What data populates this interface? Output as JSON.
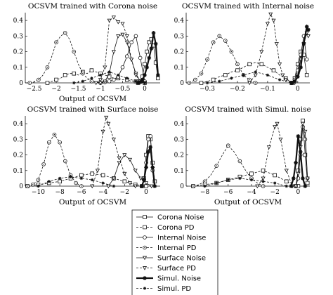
{
  "chart_data": [
    {
      "type": "line",
      "title": "OCSVM trained with Corona noise",
      "xlabel": "Output of OCSVM",
      "ylabel": "",
      "xlim": [
        -2.7,
        0.35
      ],
      "ylim": [
        0,
        0.45
      ],
      "xticks": [
        -2.5,
        -2,
        -1.5,
        -1,
        -0.5,
        0
      ],
      "xtick_labels": [
        "−2.5",
        "−2",
        "−1.5",
        "−1",
        "−0.5",
        "0"
      ],
      "yticks": [
        0,
        0.1,
        0.2,
        0.3,
        0.4
      ],
      "ytick_labels": [
        "0",
        "0.1",
        "0.2",
        "0.3",
        "0.4"
      ],
      "series": [
        {
          "name": "Corona Noise",
          "x": [
            -0.15,
            -0.1,
            -0.05,
            0.0,
            0.05,
            0.1,
            0.15,
            0.2,
            0.25,
            0.3
          ],
          "y": [
            0,
            0.01,
            0.04,
            0.12,
            0.2,
            0.26,
            0.28,
            0.24,
            0.13,
            0.03
          ]
        },
        {
          "name": "Corona PD",
          "x": [
            -2.2,
            -2.1,
            -2.0,
            -1.9,
            -1.8,
            -1.7,
            -1.6,
            -1.5,
            -1.4,
            -1.3,
            -1.2,
            -1.1,
            -1.0,
            -0.9,
            -0.8,
            -0.7,
            -0.6,
            -0.5,
            -0.4,
            -0.3,
            -0.2,
            -0.1,
            0.0
          ],
          "y": [
            0,
            0.01,
            0.02,
            0.03,
            0.05,
            0.06,
            0.06,
            0.05,
            0.07,
            0.06,
            0.08,
            0.07,
            0.06,
            0.05,
            0.04,
            0.03,
            0.03,
            0.02,
            0.02,
            0.01,
            0.01,
            0.005,
            0
          ]
        },
        {
          "name": "Internal Noise",
          "x": [
            -1.0,
            -0.9,
            -0.8,
            -0.7,
            -0.6,
            -0.5,
            -0.4,
            -0.3,
            -0.2,
            -0.1,
            0.0
          ],
          "y": [
            0,
            0.005,
            0.01,
            0.02,
            0.04,
            0.1,
            0.17,
            0.26,
            0.3,
            0.16,
            0.01
          ]
        },
        {
          "name": "Internal PD",
          "x": [
            -2.6,
            -2.5,
            -2.4,
            -2.3,
            -2.2,
            -2.1,
            -2.0,
            -1.9,
            -1.8,
            -1.7,
            -1.6,
            -1.5,
            -1.4,
            -1.3,
            -1.2,
            -1.1,
            -1.0
          ],
          "y": [
            0,
            0.005,
            0.02,
            0.05,
            0.1,
            0.17,
            0.26,
            0.3,
            0.32,
            0.28,
            0.2,
            0.12,
            0.06,
            0.03,
            0.01,
            0.005,
            0
          ]
        },
        {
          "name": "Surface Noise",
          "x": [
            -1.0,
            -0.9,
            -0.8,
            -0.7,
            -0.6,
            -0.5,
            -0.4,
            -0.3,
            -0.2,
            -0.1,
            0.0
          ],
          "y": [
            0,
            0.01,
            0.06,
            0.2,
            0.3,
            0.31,
            0.26,
            0.15,
            0.06,
            0.01,
            0
          ]
        },
        {
          "name": "Surface PD",
          "x": [
            -1.1,
            -1.0,
            -0.9,
            -0.8,
            -0.7,
            -0.6,
            -0.5,
            -0.4,
            -0.3,
            -0.2,
            -0.1,
            0.0
          ],
          "y": [
            0,
            0.02,
            0.1,
            0.4,
            0.42,
            0.39,
            0.38,
            0.3,
            0.15,
            0.05,
            0.01,
            0
          ]
        },
        {
          "name": "Simul. Noise",
          "x": [
            -0.15,
            -0.1,
            -0.05,
            0.0,
            0.05,
            0.1,
            0.15,
            0.2,
            0.25,
            0.3
          ],
          "y": [
            0,
            0.005,
            0.02,
            0.05,
            0.1,
            0.16,
            0.22,
            0.32,
            0.25,
            0.05
          ]
        },
        {
          "name": "Simul. PD",
          "x": [
            -1.6,
            -1.4,
            -1.2,
            -1.0,
            -0.8,
            -0.6,
            -0.4,
            -0.2,
            0.0
          ],
          "y": [
            0,
            0.01,
            0.03,
            0.05,
            0.07,
            0.05,
            0.03,
            0.01,
            0
          ]
        }
      ]
    },
    {
      "type": "line",
      "title": "OCSVM trained with Internal noise",
      "xlabel": "",
      "ylabel": "",
      "xlim": [
        -0.37,
        0.04
      ],
      "ylim": [
        0,
        0.45
      ],
      "xticks": [
        -0.3,
        -0.2,
        -0.1,
        0
      ],
      "xtick_labels": [
        "−0.3",
        "−0.2",
        "−0.1",
        "0"
      ],
      "yticks": [
        0,
        0.1,
        0.2,
        0.3,
        0.4
      ],
      "ytick_labels": [
        "0",
        "0.1",
        "0.2",
        "0.3",
        "0.4"
      ],
      "series": [
        {
          "name": "Corona Noise",
          "x": [
            -0.02,
            -0.01,
            0.0,
            0.01,
            0.02,
            0.03
          ],
          "y": [
            0,
            0.03,
            0.12,
            0.2,
            0.18,
            0.05
          ]
        },
        {
          "name": "Corona PD",
          "x": [
            -0.32,
            -0.3,
            -0.28,
            -0.26,
            -0.24,
            -0.22,
            -0.2,
            -0.18,
            -0.16,
            -0.14,
            -0.12,
            -0.1,
            -0.08,
            -0.06,
            -0.04,
            -0.02
          ],
          "y": [
            0,
            0.01,
            0.02,
            0.04,
            0.05,
            0.07,
            0.08,
            0.1,
            0.12,
            0.13,
            0.12,
            0.1,
            0.08,
            0.05,
            0.03,
            0
          ]
        },
        {
          "name": "Internal Noise",
          "x": [
            -0.02,
            -0.01,
            0.0,
            0.01,
            0.02,
            0.03
          ],
          "y": [
            0,
            0.02,
            0.08,
            0.18,
            0.3,
            0.15
          ]
        },
        {
          "name": "Internal PD",
          "x": [
            -0.36,
            -0.34,
            -0.32,
            -0.3,
            -0.28,
            -0.26,
            -0.24,
            -0.22,
            -0.2,
            -0.18,
            -0.16,
            -0.14
          ],
          "y": [
            0,
            0.02,
            0.06,
            0.15,
            0.26,
            0.3,
            0.27,
            0.2,
            0.12,
            0.05,
            0.02,
            0
          ]
        },
        {
          "name": "Surface Noise",
          "x": [
            -0.01,
            0.0,
            0.01,
            0.02,
            0.03,
            0.035
          ],
          "y": [
            0,
            0.05,
            0.15,
            0.25,
            0.32,
            0.3
          ]
        },
        {
          "name": "Surface PD",
          "x": [
            -0.16,
            -0.14,
            -0.12,
            -0.1,
            -0.09,
            -0.08,
            -0.07,
            -0.06,
            -0.05,
            -0.04,
            -0.02
          ],
          "y": [
            0,
            0.05,
            0.2,
            0.38,
            0.44,
            0.4,
            0.25,
            0.12,
            0.05,
            0.02,
            0
          ]
        },
        {
          "name": "Simul. Noise",
          "x": [
            -0.02,
            -0.01,
            0.0,
            0.01,
            0.02,
            0.03,
            0.035
          ],
          "y": [
            0,
            0.01,
            0.04,
            0.1,
            0.25,
            0.36,
            0.34
          ]
        },
        {
          "name": "Simul. PD",
          "x": [
            -0.3,
            -0.26,
            -0.22,
            -0.18,
            -0.14,
            -0.1,
            -0.06,
            -0.02
          ],
          "y": [
            0,
            0.01,
            0.03,
            0.05,
            0.07,
            0.05,
            0.02,
            0
          ]
        }
      ]
    },
    {
      "type": "line",
      "title": "OCSVM trained with Surface noise",
      "xlabel": "Output of OCSVM",
      "ylabel": "",
      "xlim": [
        -11.2,
        1.3
      ],
      "ylim": [
        0,
        0.45
      ],
      "xticks": [
        -10,
        -8,
        -6,
        -4,
        -2,
        0
      ],
      "xtick_labels": [
        "−10",
        "−8",
        "−6",
        "−4",
        "−2",
        "0"
      ],
      "yticks": [
        0,
        0.1,
        0.2,
        0.3,
        0.4
      ],
      "ytick_labels": [
        "0",
        "0.1",
        "0.2",
        "0.3",
        "0.4"
      ],
      "series": [
        {
          "name": "Corona Noise",
          "x": [
            -0.4,
            -0.2,
            0.0,
            0.2,
            0.4,
            0.6,
            0.8
          ],
          "y": [
            0,
            0.05,
            0.2,
            0.32,
            0.3,
            0.15,
            0.03
          ]
        },
        {
          "name": "Corona PD",
          "x": [
            -11,
            -10,
            -9,
            -8,
            -7,
            -6,
            -5,
            -4,
            -3,
            -2,
            -1,
            0
          ],
          "y": [
            0,
            0.01,
            0.02,
            0.03,
            0.05,
            0.07,
            0.08,
            0.07,
            0.05,
            0.03,
            0.01,
            0
          ]
        },
        {
          "name": "Internal Noise",
          "x": [
            -0.4,
            -0.2,
            0.0,
            0.2,
            0.4,
            0.6
          ],
          "y": [
            0,
            0.04,
            0.15,
            0.3,
            0.32,
            0.1
          ]
        },
        {
          "name": "Internal PD",
          "x": [
            -11,
            -10.5,
            -10,
            -9.5,
            -9,
            -8.5,
            -8,
            -7.5,
            -7,
            -6.5,
            -6
          ],
          "y": [
            0,
            0.01,
            0.04,
            0.14,
            0.28,
            0.33,
            0.28,
            0.16,
            0.07,
            0.02,
            0
          ]
        },
        {
          "name": "Surface Noise",
          "x": [
            -3.5,
            -3,
            -2.5,
            -2,
            -1.5,
            -1,
            -0.5,
            0,
            0.5
          ],
          "y": [
            0,
            0.05,
            0.15,
            0.2,
            0.17,
            0.1,
            0.05,
            0.02,
            0
          ]
        },
        {
          "name": "Surface PD",
          "x": [
            -5,
            -4.5,
            -4,
            -3.7,
            -3.5,
            -3,
            -2.5,
            -2,
            -1.5,
            -1
          ],
          "y": [
            0,
            0.1,
            0.35,
            0.44,
            0.4,
            0.3,
            0.18,
            0.08,
            0.02,
            0
          ]
        },
        {
          "name": "Simul. Noise",
          "x": [
            -0.4,
            -0.2,
            0,
            0.2,
            0.4,
            0.6,
            0.8
          ],
          "y": [
            0,
            0.04,
            0.12,
            0.22,
            0.25,
            0.12,
            0
          ]
        },
        {
          "name": "Simul. PD",
          "x": [
            -10,
            -9,
            -8,
            -7,
            -6,
            -5,
            -4,
            -3
          ],
          "y": [
            0,
            0.03,
            0.05,
            0.06,
            0.05,
            0.04,
            0.02,
            0
          ]
        }
      ]
    },
    {
      "type": "line",
      "title": "OCSVM trained with Simul. noise",
      "xlabel": "Output of OCSVM",
      "ylabel": "",
      "xlim": [
        -9.6,
        1.0
      ],
      "ylim": [
        0,
        0.45
      ],
      "xticks": [
        -8,
        -6,
        -4,
        -2,
        0
      ],
      "xtick_labels": [
        "−8",
        "−6",
        "−4",
        "−2",
        "0"
      ],
      "yticks": [
        0,
        0.1,
        0.2,
        0.3,
        0.4
      ],
      "ytick_labels": [
        "0",
        "0.1",
        "0.2",
        "0.3",
        "0.4"
      ],
      "series": [
        {
          "name": "Corona Noise",
          "x": [
            -0.2,
            0,
            0.2,
            0.4,
            0.6,
            0.8
          ],
          "y": [
            0,
            0.1,
            0.3,
            0.42,
            0.2,
            0.02
          ]
        },
        {
          "name": "Corona PD",
          "x": [
            -9,
            -8,
            -7,
            -6,
            -5,
            -4,
            -3,
            -2,
            -1,
            0
          ],
          "y": [
            0,
            0.01,
            0.02,
            0.04,
            0.06,
            0.08,
            0.1,
            0.07,
            0.03,
            0
          ]
        },
        {
          "name": "Internal Noise",
          "x": [
            -0.2,
            0,
            0.2,
            0.4,
            0.6,
            0.8
          ],
          "y": [
            0,
            0.05,
            0.2,
            0.38,
            0.3,
            0.05
          ]
        },
        {
          "name": "Internal PD",
          "x": [
            -9,
            -8.5,
            -8,
            -7.5,
            -7,
            -6.5,
            -6,
            -5.5,
            -5,
            -4.5,
            -4,
            -3.5,
            -3
          ],
          "y": [
            0,
            0.01,
            0.03,
            0.07,
            0.13,
            0.2,
            0.26,
            0.22,
            0.16,
            0.1,
            0.05,
            0.02,
            0
          ]
        },
        {
          "name": "Surface Noise",
          "x": [
            -0.2,
            0,
            0.2,
            0.4,
            0.6,
            0.8
          ],
          "y": [
            0,
            0.08,
            0.25,
            0.4,
            0.35,
            0.05
          ]
        },
        {
          "name": "Surface PD",
          "x": [
            -3.5,
            -3,
            -2.5,
            -2,
            -1.8,
            -1.5,
            -1,
            -0.5
          ],
          "y": [
            0,
            0.05,
            0.25,
            0.38,
            0.4,
            0.3,
            0.1,
            0
          ]
        },
        {
          "name": "Simul. Noise",
          "x": [
            -0.6,
            -0.4,
            -0.2,
            0,
            0.2,
            0.4,
            0.6
          ],
          "y": [
            0,
            0.05,
            0.15,
            0.32,
            0.22,
            0.05,
            0
          ]
        },
        {
          "name": "Simul. PD",
          "x": [
            -8,
            -7,
            -6,
            -5,
            -4,
            -3,
            -2,
            -1
          ],
          "y": [
            0,
            0.02,
            0.04,
            0.05,
            0.04,
            0.03,
            0.02,
            0
          ]
        }
      ]
    }
  ],
  "legend": {
    "items": [
      {
        "label": "Corona Noise",
        "marker": "square",
        "dash": "solid",
        "bold": false
      },
      {
        "label": "Corona PD",
        "marker": "square",
        "dash": "dashed",
        "bold": false
      },
      {
        "label": "Internal Noise",
        "marker": "circle",
        "dash": "solid",
        "bold": false
      },
      {
        "label": "Internal PD",
        "marker": "circle-dot",
        "dash": "dashed",
        "bold": false
      },
      {
        "label": "Surface Noise",
        "marker": "triangle-down",
        "dash": "solid",
        "bold": false
      },
      {
        "label": "Surface PD",
        "marker": "triangle-down",
        "dash": "dashed",
        "bold": false
      },
      {
        "label": "Simul. Noise",
        "marker": "star",
        "dash": "solid",
        "bold": true
      },
      {
        "label": "Simul. PD",
        "marker": "star",
        "dash": "dashed",
        "bold": false
      }
    ]
  }
}
